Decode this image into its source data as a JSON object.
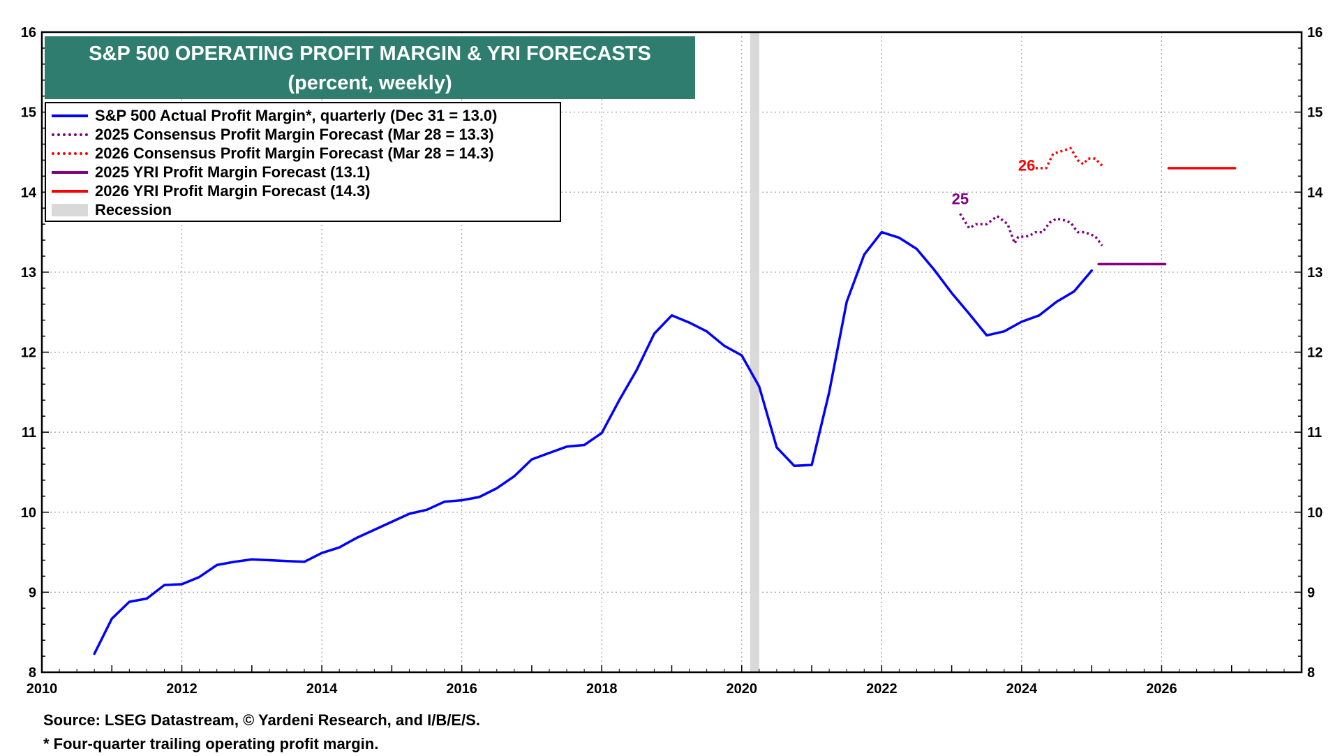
{
  "chart_data": {
    "type": "line",
    "title": "S&P 500 OPERATING PROFIT MARGIN & YRI FORECASTS",
    "subtitle": "(percent, weekly)",
    "xlabel": "",
    "ylabel": "",
    "xlim": [
      2010,
      2028
    ],
    "ylim": [
      8,
      16
    ],
    "x_ticks": [
      "2010",
      "2012",
      "2014",
      "2016",
      "2018",
      "2020",
      "2022",
      "2024",
      "2026"
    ],
    "x_tick_values": [
      2010,
      2012,
      2014,
      2016,
      2018,
      2020,
      2022,
      2024,
      2026
    ],
    "y_ticks": [
      "8",
      "9",
      "10",
      "11",
      "12",
      "13",
      "14",
      "15",
      "16"
    ],
    "y_tick_values": [
      8,
      9,
      10,
      11,
      12,
      13,
      14,
      15,
      16
    ],
    "grid": true,
    "recession": [
      2020.12,
      2020.25
    ],
    "series": [
      {
        "name": "S&P 500 Actual Profit Margin*, quarterly (Dec 31 = 13.0)",
        "color": "#0000ff",
        "style": "solid",
        "points": [
          [
            2010.75,
            8.23
          ],
          [
            2011.0,
            8.67
          ],
          [
            2011.25,
            8.88
          ],
          [
            2011.5,
            8.92
          ],
          [
            2011.75,
            9.09
          ],
          [
            2012.0,
            9.1
          ],
          [
            2012.25,
            9.19
          ],
          [
            2012.5,
            9.34
          ],
          [
            2012.75,
            9.38
          ],
          [
            2013.0,
            9.41
          ],
          [
            2013.25,
            9.4
          ],
          [
            2013.5,
            9.39
          ],
          [
            2013.75,
            9.38
          ],
          [
            2014.0,
            9.49
          ],
          [
            2014.25,
            9.56
          ],
          [
            2014.5,
            9.68
          ],
          [
            2014.75,
            9.78
          ],
          [
            2015.0,
            9.88
          ],
          [
            2015.25,
            9.98
          ],
          [
            2015.5,
            10.03
          ],
          [
            2015.75,
            10.13
          ],
          [
            2016.0,
            10.15
          ],
          [
            2016.25,
            10.19
          ],
          [
            2016.5,
            10.3
          ],
          [
            2016.75,
            10.45
          ],
          [
            2017.0,
            10.66
          ],
          [
            2017.25,
            10.74
          ],
          [
            2017.5,
            10.82
          ],
          [
            2017.75,
            10.84
          ],
          [
            2018.0,
            10.99
          ],
          [
            2018.25,
            11.4
          ],
          [
            2018.5,
            11.78
          ],
          [
            2018.75,
            12.23
          ],
          [
            2019.0,
            12.46
          ],
          [
            2019.25,
            12.37
          ],
          [
            2019.5,
            12.26
          ],
          [
            2019.75,
            12.08
          ],
          [
            2020.0,
            11.96
          ],
          [
            2020.25,
            11.57
          ],
          [
            2020.5,
            10.81
          ],
          [
            2020.75,
            10.58
          ],
          [
            2021.0,
            10.59
          ],
          [
            2021.25,
            11.5
          ],
          [
            2021.5,
            12.63
          ],
          [
            2021.75,
            13.22
          ],
          [
            2022.0,
            13.5
          ],
          [
            2022.25,
            13.43
          ],
          [
            2022.5,
            13.29
          ],
          [
            2022.75,
            13.03
          ],
          [
            2023.0,
            12.74
          ],
          [
            2023.25,
            12.48
          ],
          [
            2023.5,
            12.21
          ],
          [
            2023.75,
            12.26
          ],
          [
            2024.0,
            12.38
          ],
          [
            2024.25,
            12.46
          ],
          [
            2024.5,
            12.63
          ],
          [
            2024.75,
            12.76
          ],
          [
            2025.0,
            13.02
          ]
        ]
      },
      {
        "name": "2025 Consensus Profit Margin Forecast (Mar 28 = 13.3)",
        "color": "#800080",
        "style": "dotted",
        "points": [
          [
            2023.12,
            13.73
          ],
          [
            2023.25,
            13.55
          ],
          [
            2023.35,
            13.6
          ],
          [
            2023.5,
            13.6
          ],
          [
            2023.65,
            13.7
          ],
          [
            2023.8,
            13.6
          ],
          [
            2023.9,
            13.36
          ],
          [
            2023.95,
            13.44
          ],
          [
            2024.1,
            13.45
          ],
          [
            2024.2,
            13.5
          ],
          [
            2024.3,
            13.5
          ],
          [
            2024.4,
            13.62
          ],
          [
            2024.5,
            13.67
          ],
          [
            2024.6,
            13.65
          ],
          [
            2024.7,
            13.62
          ],
          [
            2024.8,
            13.5
          ],
          [
            2024.9,
            13.5
          ],
          [
            2025.05,
            13.45
          ],
          [
            2025.15,
            13.33
          ]
        ]
      },
      {
        "name": "2026 Consensus Profit Margin Forecast (Mar 28 = 14.3)",
        "color": "#ff0000",
        "style": "dotted",
        "points": [
          [
            2024.2,
            14.3
          ],
          [
            2024.35,
            14.3
          ],
          [
            2024.45,
            14.48
          ],
          [
            2024.6,
            14.52
          ],
          [
            2024.7,
            14.55
          ],
          [
            2024.8,
            14.4
          ],
          [
            2024.88,
            14.35
          ],
          [
            2024.95,
            14.42
          ],
          [
            2025.05,
            14.42
          ],
          [
            2025.15,
            14.33
          ]
        ]
      },
      {
        "name": "2025 YRI Profit Margin Forecast (13.1)",
        "color": "#800080",
        "style": "solid",
        "points": [
          [
            2025.1,
            13.1
          ],
          [
            2026.05,
            13.1
          ]
        ]
      },
      {
        "name": "2026 YRI Profit Margin Forecast (14.3)",
        "color": "#ff0000",
        "style": "solid",
        "points": [
          [
            2026.1,
            14.3
          ],
          [
            2027.05,
            14.3
          ]
        ]
      }
    ],
    "legend": [
      {
        "label": "S&P 500 Actual Profit Margin*, quarterly (Dec 31 = 13.0)",
        "color": "#0000ff",
        "style": "solid"
      },
      {
        "label": "2025 Consensus Profit Margin Forecast (Mar 28 = 13.3)",
        "color": "#800080",
        "style": "dotted"
      },
      {
        "label": "2026 Consensus Profit Margin Forecast (Mar 28 = 14.3)",
        "color": "#ff0000",
        "style": "dotted"
      },
      {
        "label": "2025 YRI Profit Margin Forecast (13.1)",
        "color": "#800080",
        "style": "solid"
      },
      {
        "label": "2026 YRI Profit Margin Forecast (14.3)",
        "color": "#ff0000",
        "style": "solid"
      },
      {
        "label": "Recession",
        "color": "#d9d9d9",
        "style": "bar"
      }
    ],
    "annotations": [
      {
        "text": "25",
        "x": 2023.0,
        "y": 13.85,
        "color": "#800080"
      },
      {
        "text": "26",
        "x": 2023.95,
        "y": 14.27,
        "color": "#ff0000"
      }
    ]
  },
  "footnotes": {
    "source": "Source: LSEG Datastream, © Yardeni Research, and I/B/E/S.",
    "note": "* Four-quarter trailing operating profit margin."
  }
}
